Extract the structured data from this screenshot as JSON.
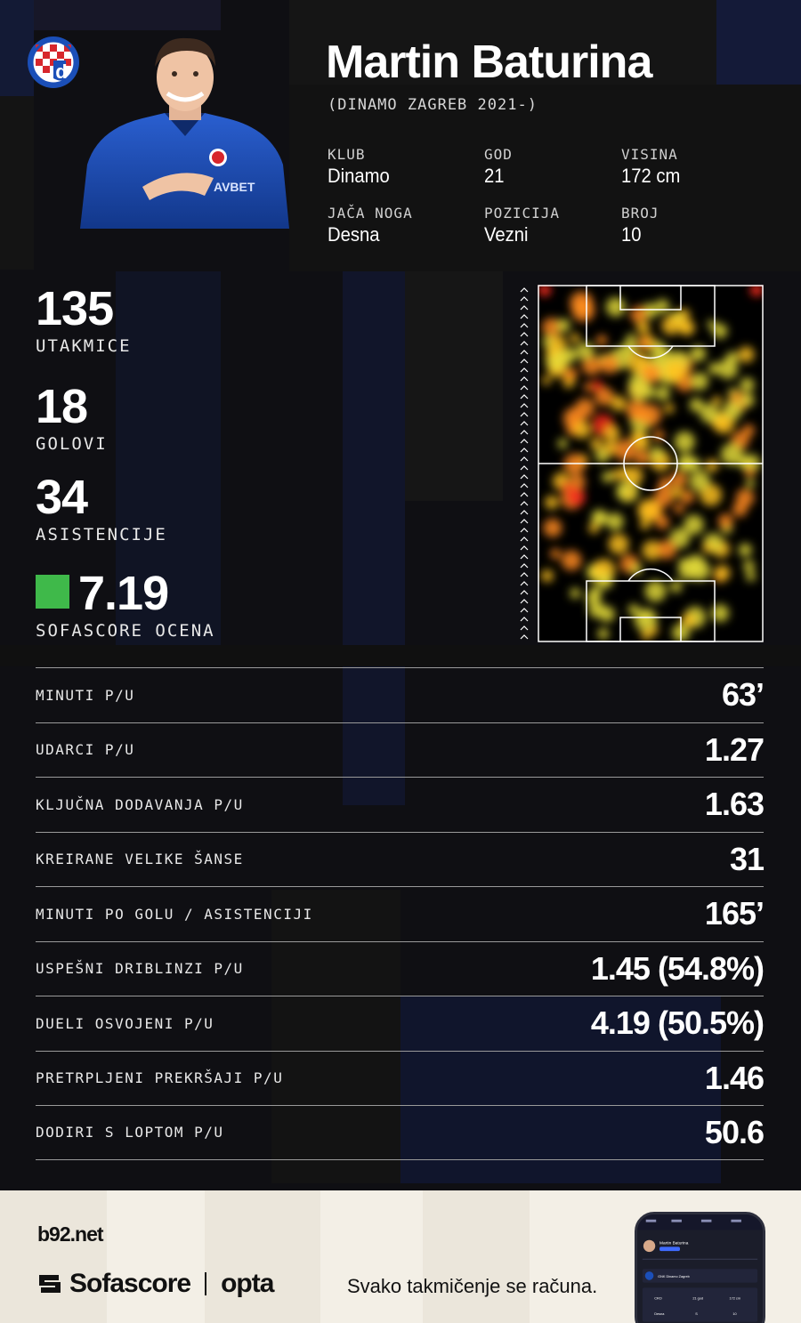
{
  "player": {
    "name": "Martin Baturina",
    "subtitle": "(DINAMO ZAGREB 2021-)"
  },
  "info": [
    {
      "label": "KLUB",
      "value": "Dinamo"
    },
    {
      "label": "GOD",
      "value": "21"
    },
    {
      "label": "VISINA",
      "value": "172 cm"
    },
    {
      "label": "JAČA NOGA",
      "value": "Desna"
    },
    {
      "label": "POZICIJA",
      "value": "Vezni"
    },
    {
      "label": "BROJ",
      "value": "10"
    }
  ],
  "key_stats": [
    {
      "value": "135",
      "caption": "UTAKMICE"
    },
    {
      "value": "18",
      "caption": "GOLOVI"
    },
    {
      "value": "34",
      "caption": "ASISTENCIJE"
    }
  ],
  "rating": {
    "value": "7.19",
    "caption": "SOFASCORE OCENA",
    "color": "#3fb94a"
  },
  "stats_table": [
    {
      "label": "MINUTI P/U",
      "value": "63’"
    },
    {
      "label": "UDARCI P/U",
      "value": "1.27"
    },
    {
      "label": "KLJUČNA DODAVANJA P/U",
      "value": "1.63"
    },
    {
      "label": "KREIRANE VELIKE ŠANSE",
      "value": "31"
    },
    {
      "label": "MINUTI PO GOLU / ASISTENCIJI",
      "value": "165’"
    },
    {
      "label": "USPEŠNI DRIBLINZI P/U",
      "value": "1.45 (54.8%)"
    },
    {
      "label": "DUELI OSVOJENI P/U",
      "value": "4.19 (50.5%)"
    },
    {
      "label": "PRETRPLJENI PREKRŠAJI P/U",
      "value": "1.46"
    },
    {
      "label": "DODIRI S LOPTOM P/U",
      "value": "50.6"
    }
  ],
  "footer": {
    "b92": "b92.net",
    "sofascore": "Sofascore",
    "opta": "opta",
    "tagline": "Svako takmičenje se računa."
  },
  "phone": {
    "name": "Martin Baturina",
    "team": "GNK Dinamo Zagreb",
    "mini": [
      "CRO",
      "21 god",
      "172 cm",
      "Desna",
      "S",
      "10"
    ]
  },
  "colors": {
    "background": "#0f0f13",
    "rating_green": "#3fb94a",
    "dinamo_blue": "#1b4fb8",
    "footer_bg": "#f3efe6"
  },
  "icons": [
    "dinamo-crest-icon",
    "sofascore-mark-icon",
    "direction-arrow-icon"
  ]
}
